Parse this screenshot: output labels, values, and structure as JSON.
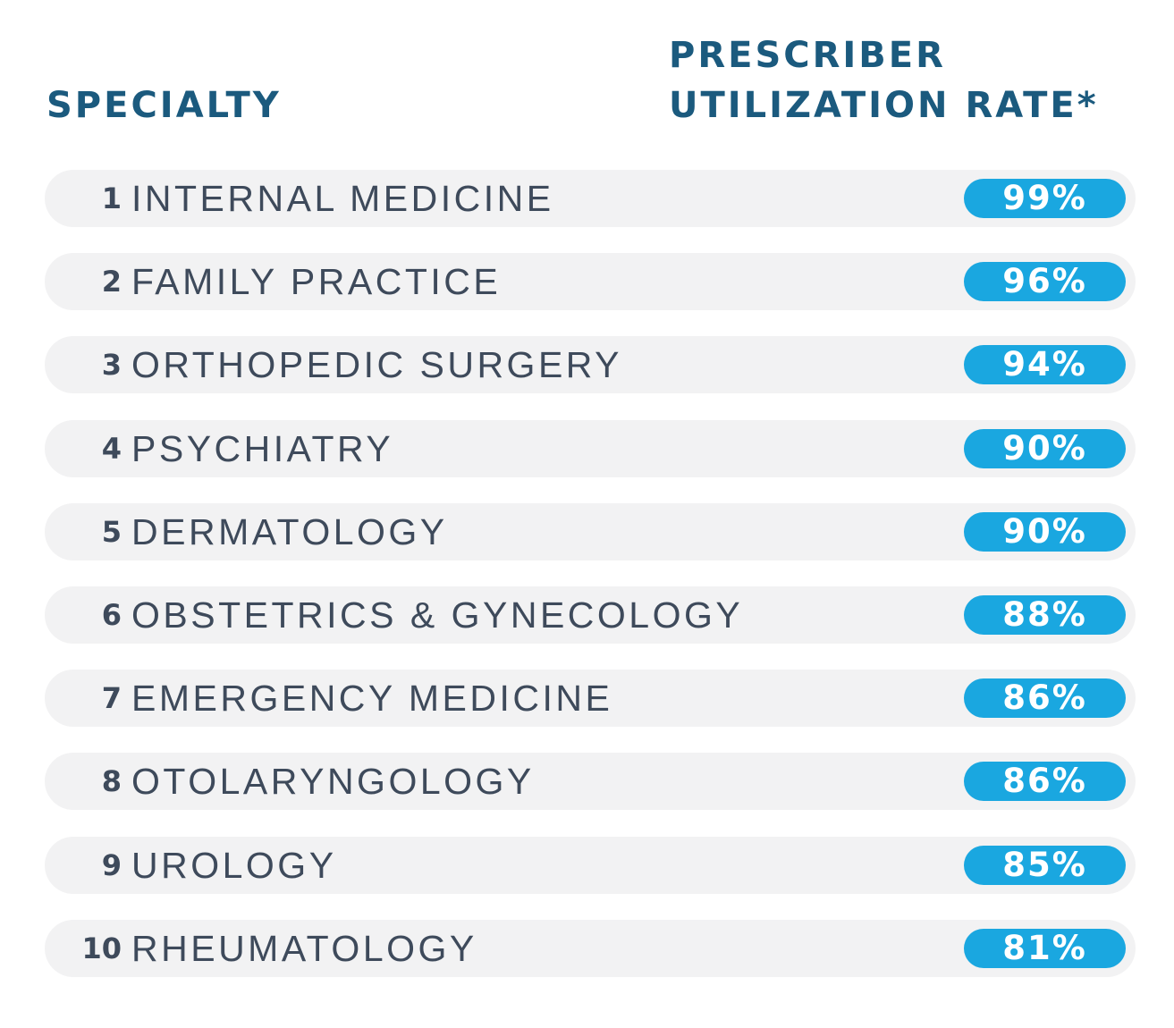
{
  "header": {
    "specialty": "SPECIALTY",
    "rate": [
      "PRESCRIBER",
      "UTILIZATION RATE*"
    ]
  },
  "table": {
    "rows": [
      [
        "1",
        "INTERNAL MEDICINE",
        "99%"
      ],
      [
        "2",
        "FAMILY PRACTICE",
        "96%"
      ],
      [
        "3",
        "ORTHOPEDIC SURGERY",
        "94%"
      ],
      [
        "4",
        "PSYCHIATRY",
        "90%"
      ],
      [
        "5",
        "DERMATOLOGY",
        "90%"
      ],
      [
        "6",
        "OBSTETRICS & GYNECOLOGY",
        "88%"
      ],
      [
        "7",
        "EMERGENCY MEDICINE",
        "86%"
      ],
      [
        "8",
        "OTOLARYNGOLOGY",
        "86%"
      ],
      [
        "9",
        "UROLOGY",
        "85%"
      ],
      [
        "10",
        "RHEUMATOLOGY",
        "81%"
      ]
    ]
  }
}
